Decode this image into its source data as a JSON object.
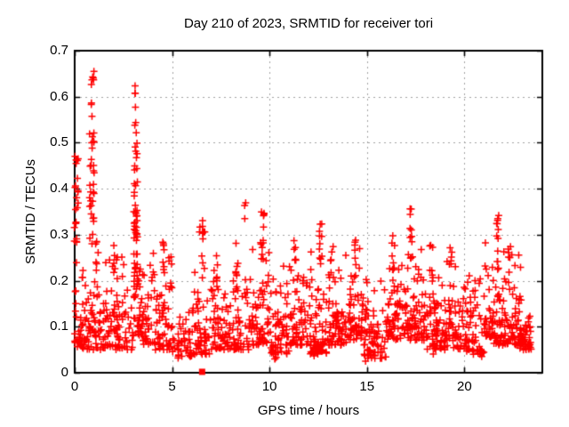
{
  "figure": {
    "background": "#ffffff",
    "border_color": "#000000",
    "grid_color": "#a0a0a0",
    "tick_label_color": "#000000"
  },
  "chart_data": {
    "type": "scatter",
    "title": "Day 210 of 2023, SRMTID for receiver tori",
    "xlabel": "GPS time / hours",
    "ylabel": "SRMTID / TECUs",
    "xlim": [
      0,
      24
    ],
    "ylim": [
      0,
      0.7
    ],
    "xticks": [
      {
        "v": 0,
        "label": "0"
      },
      {
        "v": 5,
        "label": "5"
      },
      {
        "v": 10,
        "label": "10"
      },
      {
        "v": 15,
        "label": "15"
      },
      {
        "v": 20,
        "label": "20"
      }
    ],
    "yticks": [
      {
        "v": 0.0,
        "label": "0"
      },
      {
        "v": 0.1,
        "label": "0.1"
      },
      {
        "v": 0.2,
        "label": "0.2"
      },
      {
        "v": 0.3,
        "label": "0.3"
      },
      {
        "v": 0.4,
        "label": "0.4"
      },
      {
        "v": 0.5,
        "label": "0.5"
      },
      {
        "v": 0.6,
        "label": "0.6"
      },
      {
        "v": 0.7,
        "label": "0.7"
      }
    ],
    "grid": true,
    "legend": false,
    "marker": {
      "shape": "plus",
      "size": 8,
      "color": "#ff0000"
    },
    "data_extent": {
      "x_min": 0.0,
      "x_max": 23.45,
      "y_min": 0.0,
      "y_max": 0.64
    },
    "point_spec": {
      "description": "Dense noisy band of red plus markers ~0.05-0.2 TECUs across all hours, with tall spike columns near hours 0, 0.9 (to 0.65), 3.1 (to 0.63), 6.6, 9.6, 12.6, 17.3, 21.7, and one filled-square outlier on the x-axis near hour 6.5. bands/columns/tails = [x0,x1,n,lo,hi] / [x,jitter,n,lo,hi].",
      "bands": [
        [
          0.0,
          1.0,
          70,
          0.05,
          0.26
        ],
        [
          1.0,
          2.0,
          60,
          0.05,
          0.28
        ],
        [
          2.0,
          3.0,
          60,
          0.05,
          0.28
        ],
        [
          3.0,
          3.5,
          40,
          0.08,
          0.35
        ],
        [
          3.5,
          4.0,
          30,
          0.06,
          0.26
        ],
        [
          4.0,
          5.0,
          60,
          0.05,
          0.28
        ],
        [
          5.0,
          6.0,
          40,
          0.035,
          0.16
        ],
        [
          6.0,
          7.0,
          55,
          0.04,
          0.26
        ],
        [
          7.0,
          8.0,
          60,
          0.05,
          0.25
        ],
        [
          8.0,
          9.0,
          55,
          0.05,
          0.24
        ],
        [
          9.0,
          10.0,
          65,
          0.06,
          0.3
        ],
        [
          10.0,
          11.0,
          60,
          0.04,
          0.25
        ],
        [
          11.0,
          12.0,
          65,
          0.06,
          0.28
        ],
        [
          12.0,
          13.0,
          65,
          0.04,
          0.28
        ],
        [
          13.0,
          14.0,
          65,
          0.06,
          0.27
        ],
        [
          14.0,
          15.0,
          70,
          0.07,
          0.28
        ],
        [
          15.0,
          16.0,
          55,
          0.03,
          0.22
        ],
        [
          16.0,
          17.0,
          70,
          0.07,
          0.3
        ],
        [
          17.0,
          18.0,
          70,
          0.07,
          0.3
        ],
        [
          18.0,
          19.0,
          65,
          0.05,
          0.28
        ],
        [
          19.0,
          20.0,
          60,
          0.05,
          0.27
        ],
        [
          20.0,
          21.0,
          60,
          0.04,
          0.26
        ],
        [
          21.0,
          22.0,
          70,
          0.06,
          0.3
        ],
        [
          22.0,
          23.0,
          70,
          0.06,
          0.28
        ],
        [
          23.0,
          23.45,
          35,
          0.05,
          0.22
        ]
      ],
      "columns": [
        [
          0.08,
          0.1,
          22,
          0.28,
          0.485
        ],
        [
          0.88,
          0.12,
          30,
          0.28,
          0.535
        ],
        [
          0.92,
          0.07,
          9,
          0.555,
          0.655
        ],
        [
          1.15,
          0.08,
          6,
          0.22,
          0.3
        ],
        [
          2.1,
          0.1,
          8,
          0.2,
          0.285
        ],
        [
          3.12,
          0.1,
          26,
          0.3,
          0.5
        ],
        [
          3.12,
          0.05,
          7,
          0.52,
          0.635
        ],
        [
          3.15,
          0.12,
          20,
          0.18,
          0.32
        ],
        [
          4.6,
          0.1,
          8,
          0.2,
          0.3
        ],
        [
          4.9,
          0.08,
          6,
          0.18,
          0.27
        ],
        [
          6.4,
          0.03,
          2,
          0.3,
          0.325
        ],
        [
          6.6,
          0.08,
          10,
          0.18,
          0.335
        ],
        [
          7.35,
          0.1,
          6,
          0.18,
          0.26
        ],
        [
          8.3,
          0.08,
          6,
          0.18,
          0.3
        ],
        [
          8.75,
          0.04,
          3,
          0.32,
          0.37
        ],
        [
          9.62,
          0.1,
          14,
          0.2,
          0.35
        ],
        [
          11.3,
          0.1,
          6,
          0.22,
          0.3
        ],
        [
          12.62,
          0.08,
          10,
          0.24,
          0.34
        ],
        [
          13.2,
          0.08,
          6,
          0.2,
          0.285
        ],
        [
          14.4,
          0.08,
          6,
          0.2,
          0.3
        ],
        [
          16.35,
          0.1,
          8,
          0.2,
          0.3
        ],
        [
          17.28,
          0.07,
          10,
          0.24,
          0.377
        ],
        [
          18.3,
          0.08,
          6,
          0.2,
          0.3
        ],
        [
          19.3,
          0.08,
          6,
          0.2,
          0.285
        ],
        [
          21.7,
          0.07,
          12,
          0.22,
          0.345
        ],
        [
          22.3,
          0.08,
          8,
          0.18,
          0.28
        ]
      ],
      "tails": [
        [
          5.3,
          0.05,
          4,
          0.03,
          0.07
        ],
        [
          10.3,
          0.05,
          4,
          0.03,
          0.07
        ],
        [
          12.3,
          0.06,
          6,
          0.03,
          0.08
        ],
        [
          14.9,
          0.06,
          5,
          0.025,
          0.07
        ],
        [
          15.3,
          0.05,
          4,
          0.03,
          0.07
        ],
        [
          18.45,
          0.05,
          5,
          0.02,
          0.07
        ],
        [
          20.9,
          0.05,
          4,
          0.03,
          0.07
        ],
        [
          22.9,
          0.05,
          4,
          0.04,
          0.08
        ]
      ],
      "special": [
        {
          "x": 6.54,
          "y": 0.002,
          "marker": "filled-square",
          "size": 7,
          "color": "#ff0000"
        }
      ]
    }
  }
}
